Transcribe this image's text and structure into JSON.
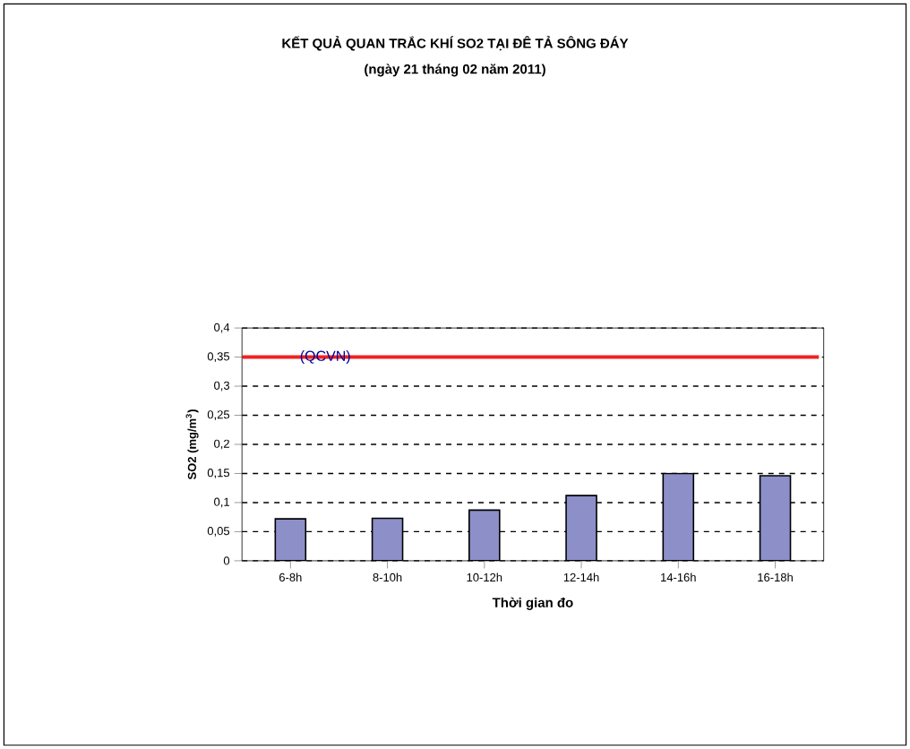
{
  "chart_data": {
    "type": "bar",
    "title": "KẾT QUẢ QUAN TRẮC KHÍ SO2 TẠI ĐÊ TẢ SÔNG ĐÁY",
    "subtitle": "(ngày 21 tháng 02 năm 2011)",
    "xlabel": "Thời gian đo",
    "ylabel": "SO2 (mg/m$^{3}$)",
    "categories": [
      "6-8h",
      "8-10h",
      "10-12h",
      "12-14h",
      "14-16h",
      "16-18h"
    ],
    "values": [
      0.072,
      0.073,
      0.087,
      0.112,
      0.15,
      0.146
    ],
    "color": "#8c8fc8",
    "ylim": [
      0,
      0.4
    ],
    "yticks": [
      {
        "value": 0,
        "label": "0"
      },
      {
        "value": 0.05,
        "label": "0,05"
      },
      {
        "value": 0.1,
        "label": "0,1"
      },
      {
        "value": 0.15,
        "label": "0,15"
      },
      {
        "value": 0.2,
        "label": "0,2"
      },
      {
        "value": 0.25,
        "label": "0,25"
      },
      {
        "value": 0.3,
        "label": "0,3"
      },
      {
        "value": 0.35,
        "label": "0,35"
      },
      {
        "value": 0.4,
        "label": "0,4"
      }
    ],
    "ref_lines": [
      {
        "axis": "y",
        "value": 0.35,
        "label": "(QCVN)",
        "color": "#ee2222"
      }
    ],
    "grid": "y"
  }
}
